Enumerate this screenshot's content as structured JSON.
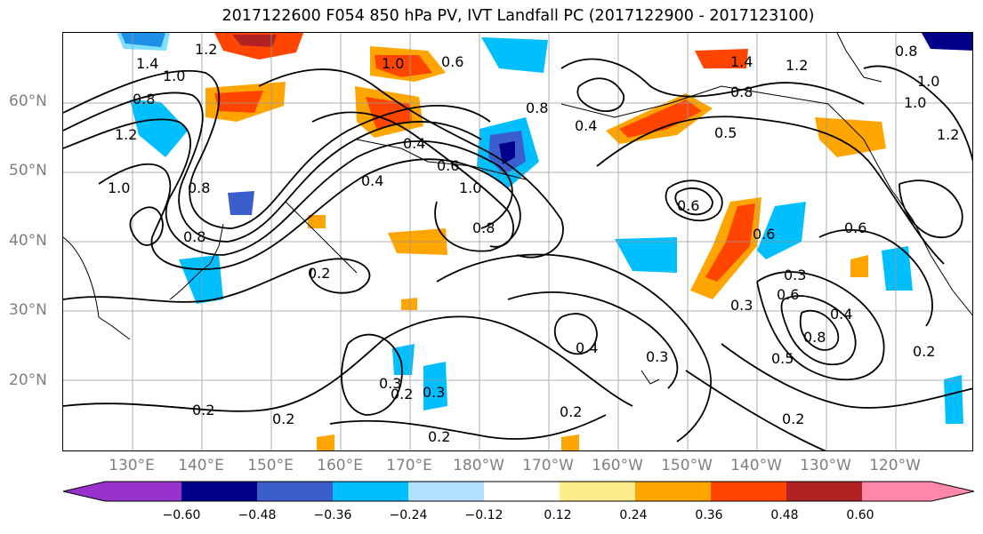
{
  "title": "2017122600 F054 850 hPa PV, IVT Landfall PC (2017122900 - 2017123100)",
  "lat_ticks": [
    "60°N",
    "50°N",
    "40°N",
    "30°N",
    "20°N"
  ],
  "lon_ticks": [
    "130°E",
    "140°E",
    "150°E",
    "160°E",
    "170°E",
    "180°W",
    "170°W",
    "160°W",
    "150°W",
    "140°W",
    "130°W",
    "120°W"
  ],
  "colorbar": {
    "tick_labels": [
      "−0.60",
      "−0.48",
      "−0.36",
      "−0.24",
      "−0.12",
      "0.12",
      "0.24",
      "0.36",
      "0.48",
      "0.60"
    ],
    "colors": [
      "#9932CC",
      "#00008B",
      "#3A5FCD",
      "#00BFFF",
      "#B2E0FF",
      "#FFFFFF",
      "#FFEC8B",
      "#FFA500",
      "#FF4500",
      "#B22222",
      "#FF88AA"
    ]
  },
  "contour_labels": [
    "1.4",
    "1.0",
    "1.2",
    "0.8",
    "1.0",
    "0.8",
    "1.2",
    "1.0",
    "0.8",
    "0.4",
    "0.6",
    "0.8",
    "1.0",
    "0.8",
    "0.6",
    "0.4",
    "0.6",
    "0.8",
    "0.5",
    "1.4",
    "1.2",
    "1.0",
    "0.6",
    "0.6",
    "0.3",
    "0.4",
    "0.8",
    "0.5",
    "0.3",
    "0.2",
    "0.2",
    "0.2",
    "0.2",
    "0.3",
    "0.2",
    "0.3",
    "0.4",
    "0.3",
    "0.2",
    "0.6",
    "0.2",
    "0.2",
    "0.4",
    "0.8",
    "1.0",
    "1.2"
  ]
}
